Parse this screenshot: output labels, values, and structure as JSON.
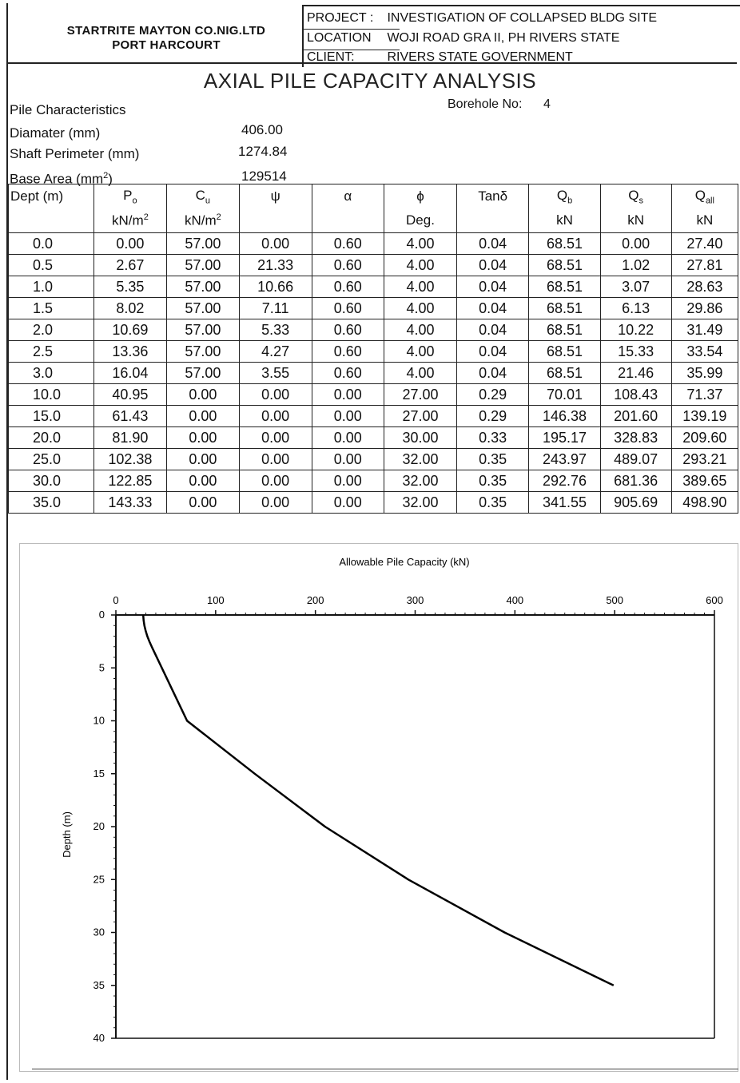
{
  "header": {
    "company_line1": "STARTRITE MAYTON CO.NIG.LTD",
    "company_line2": "PORT HARCOURT",
    "project_key": "PROJECT :",
    "project_value": "INVESTIGATION OF COLLAPSED BLDG SITE",
    "location_key": "LOCATION",
    "location_value": "WOJI ROAD GRA II, PH RIVERS STATE",
    "client_key": "CLIENT:",
    "client_value": "RIVERS STATE GOVERNMENT"
  },
  "title": "AXIAL PILE CAPACITY ANALYSIS",
  "pile": {
    "heading": "Pile Characteristics",
    "borehole_label": "Borehole No:",
    "borehole_value": "4",
    "diameter_label": "Diamater (mm)",
    "diameter_value": "406.00",
    "perimeter_label": "Shaft Perimeter (mm)",
    "perimeter_value": "1274.84",
    "base_area_label": "Base Area (mm",
    "base_area_sup": "2",
    "base_area_close": ")",
    "base_area_value": "129514"
  },
  "table": {
    "headers": {
      "dept": "Dept (m)",
      "po": "P",
      "po_sub": "o",
      "po_unit": "kN/m",
      "po_unit_sup": "2",
      "cu": "C",
      "cu_sub": "u",
      "cu_unit": "kN/m",
      "cu_unit_sup": "2",
      "psi": "ψ",
      "alpha": "α",
      "phi": "ϕ",
      "phi_unit": "Deg.",
      "tan": "Tanδ",
      "qb": "Q",
      "qb_sub": "b",
      "qb_unit": "kN",
      "qs": "Q",
      "qs_sub": "s",
      "qs_unit": "kN",
      "qall": "Q",
      "qall_sub": "all",
      "qall_unit": "kN"
    },
    "rows": [
      [
        "0.0",
        "0.00",
        "57.00",
        "0.00",
        "0.60",
        "4.00",
        "0.04",
        "68.51",
        "0.00",
        "27.40"
      ],
      [
        "0.5",
        "2.67",
        "57.00",
        "21.33",
        "0.60",
        "4.00",
        "0.04",
        "68.51",
        "1.02",
        "27.81"
      ],
      [
        "1.0",
        "5.35",
        "57.00",
        "10.66",
        "0.60",
        "4.00",
        "0.04",
        "68.51",
        "3.07",
        "28.63"
      ],
      [
        "1.5",
        "8.02",
        "57.00",
        "7.11",
        "0.60",
        "4.00",
        "0.04",
        "68.51",
        "6.13",
        "29.86"
      ],
      [
        "2.0",
        "10.69",
        "57.00",
        "5.33",
        "0.60",
        "4.00",
        "0.04",
        "68.51",
        "10.22",
        "31.49"
      ],
      [
        "2.5",
        "13.36",
        "57.00",
        "4.27",
        "0.60",
        "4.00",
        "0.04",
        "68.51",
        "15.33",
        "33.54"
      ],
      [
        "3.0",
        "16.04",
        "57.00",
        "3.55",
        "0.60",
        "4.00",
        "0.04",
        "68.51",
        "21.46",
        "35.99"
      ],
      [
        "10.0",
        "40.95",
        "0.00",
        "0.00",
        "0.00",
        "27.00",
        "0.29",
        "70.01",
        "108.43",
        "71.37"
      ],
      [
        "15.0",
        "61.43",
        "0.00",
        "0.00",
        "0.00",
        "27.00",
        "0.29",
        "146.38",
        "201.60",
        "139.19"
      ],
      [
        "20.0",
        "81.90",
        "0.00",
        "0.00",
        "0.00",
        "30.00",
        "0.33",
        "195.17",
        "328.83",
        "209.60"
      ],
      [
        "25.0",
        "102.38",
        "0.00",
        "0.00",
        "0.00",
        "32.00",
        "0.35",
        "243.97",
        "489.07",
        "293.21"
      ],
      [
        "30.0",
        "122.85",
        "0.00",
        "0.00",
        "0.00",
        "32.00",
        "0.35",
        "292.76",
        "681.36",
        "389.65"
      ],
      [
        "35.0",
        "143.33",
        "0.00",
        "0.00",
        "0.00",
        "32.00",
        "0.35",
        "341.55",
        "905.69",
        "498.90"
      ]
    ]
  },
  "chart_data": {
    "type": "line",
    "title": "Allowable Pile Capacity (kN)",
    "xlabel": "",
    "ylabel": "Depth (m)",
    "xlim": [
      0,
      600
    ],
    "ylim": [
      0,
      40
    ],
    "y_inverted": true,
    "x_axis_position": "top",
    "x_ticks": [
      "0",
      "100",
      "200",
      "300",
      "400",
      "500",
      "600"
    ],
    "y_ticks": [
      "0",
      "5",
      "10",
      "15",
      "20",
      "25",
      "30",
      "35",
      "40"
    ],
    "grid": false,
    "series": [
      {
        "x": [
          27.4,
          27.81,
          28.63,
          29.86,
          31.49,
          33.54,
          35.99,
          71.37,
          139.19,
          209.6,
          293.21,
          389.65,
          498.9
        ],
        "y": [
          0.0,
          0.5,
          1.0,
          1.5,
          2.0,
          2.5,
          3.0,
          10.0,
          15.0,
          20.0,
          25.0,
          30.0,
          35.0
        ]
      }
    ]
  }
}
